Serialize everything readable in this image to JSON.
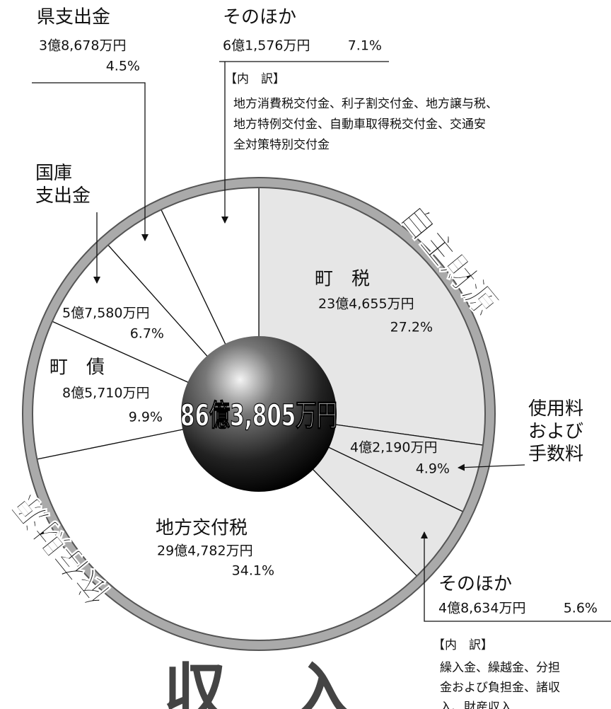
{
  "chart_data": {
    "type": "pie",
    "total": "86億3,805万円",
    "categories": [
      "町　税",
      "使用料および手数料",
      "そのほか",
      "地方交付税",
      "町　債",
      "国庫支出金",
      "県支出金",
      "そのほか"
    ],
    "values": [
      27.2,
      4.9,
      5.6,
      34.1,
      9.9,
      6.7,
      4.5,
      7.1
    ],
    "value_labels": [
      "27.2%",
      "4.9%",
      "5.6%",
      "34.1%",
      "9.9%",
      "6.7%",
      "4.5%",
      "7.1%"
    ],
    "amounts": [
      "23億4,655万円",
      "4億2,190万円",
      "4億8,634万円",
      "29億4,782万円",
      "8億5,710万円",
      "5億7,580万円",
      "3億8,678万円",
      "6億1,576万円"
    ],
    "colors": [
      "#e6e6e6",
      "#e6e6e6",
      "#e6e6e6",
      "#ffffff",
      "#ffffff",
      "#ffffff",
      "#ffffff",
      "#ffffff"
    ],
    "groups": [
      "自主財源",
      "依存財源"
    ],
    "notes": [
      {
        "heading": "【内　訳】",
        "lines": [
          "地方消費税交付金、利子割交付金、地方譲与税、",
          "地方特例交付金、自動車取得税交付金、交通安",
          "全対策特別交付金"
        ]
      },
      {
        "heading": "【内　訳】",
        "lines": [
          "繰入金、繰越金、分担",
          "金および負担金、諸収",
          "入、財産収入"
        ]
      }
    ],
    "footer": "収　入"
  }
}
